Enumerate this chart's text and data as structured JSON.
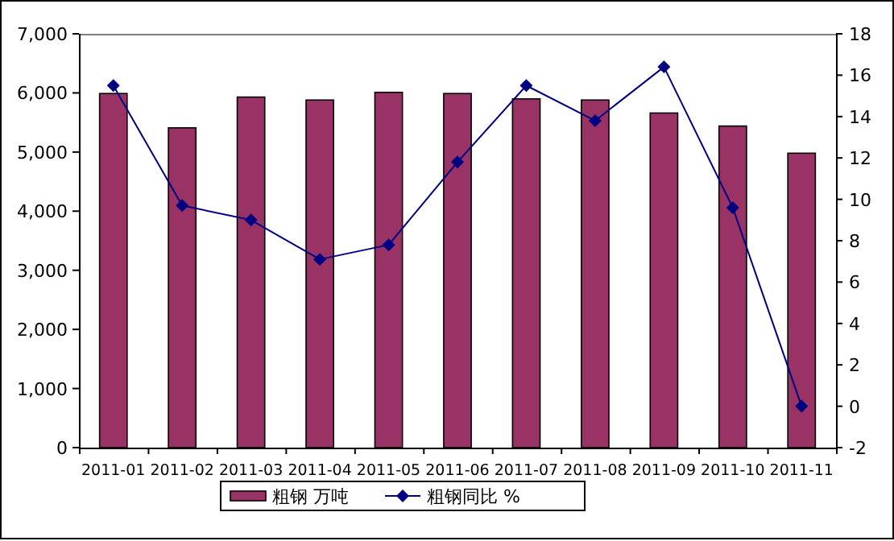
{
  "chart_data": {
    "type": "bar",
    "categories": [
      "2011-01",
      "2011-02",
      "2011-03",
      "2011-04",
      "2011-05",
      "2011-06",
      "2011-07",
      "2011-08",
      "2011-09",
      "2011-10",
      "2011-11"
    ],
    "series": [
      {
        "name": "粗钢 万吨",
        "color": "#993366",
        "values": [
          5990,
          5410,
          5930,
          5880,
          6010,
          5990,
          5900,
          5880,
          5660,
          5440,
          4980
        ]
      },
      {
        "name": "粗钢同比 %",
        "type": "line",
        "axis": "y2",
        "color": "#000080",
        "marker": "diamond",
        "values": [
          15.5,
          9.7,
          9.0,
          7.1,
          7.8,
          11.8,
          15.5,
          13.8,
          16.4,
          9.6,
          0.0
        ]
      }
    ],
    "ylim": [
      0,
      7000
    ],
    "yticks": [
      {
        "value": 0,
        "label": "0"
      },
      {
        "value": 1000,
        "label": "1,000"
      },
      {
        "value": 2000,
        "label": "2,000"
      },
      {
        "value": 3000,
        "label": "3,000"
      },
      {
        "value": 4000,
        "label": "4,000"
      },
      {
        "value": 5000,
        "label": "5,000"
      },
      {
        "value": 6000,
        "label": "6,000"
      },
      {
        "value": 7000,
        "label": "7,000"
      }
    ],
    "y2lim": [
      -2,
      18
    ],
    "y2ticks": [
      -2,
      0,
      2,
      4,
      6,
      8,
      10,
      12,
      14,
      16,
      18
    ],
    "grid": false,
    "legend": "bottom"
  }
}
